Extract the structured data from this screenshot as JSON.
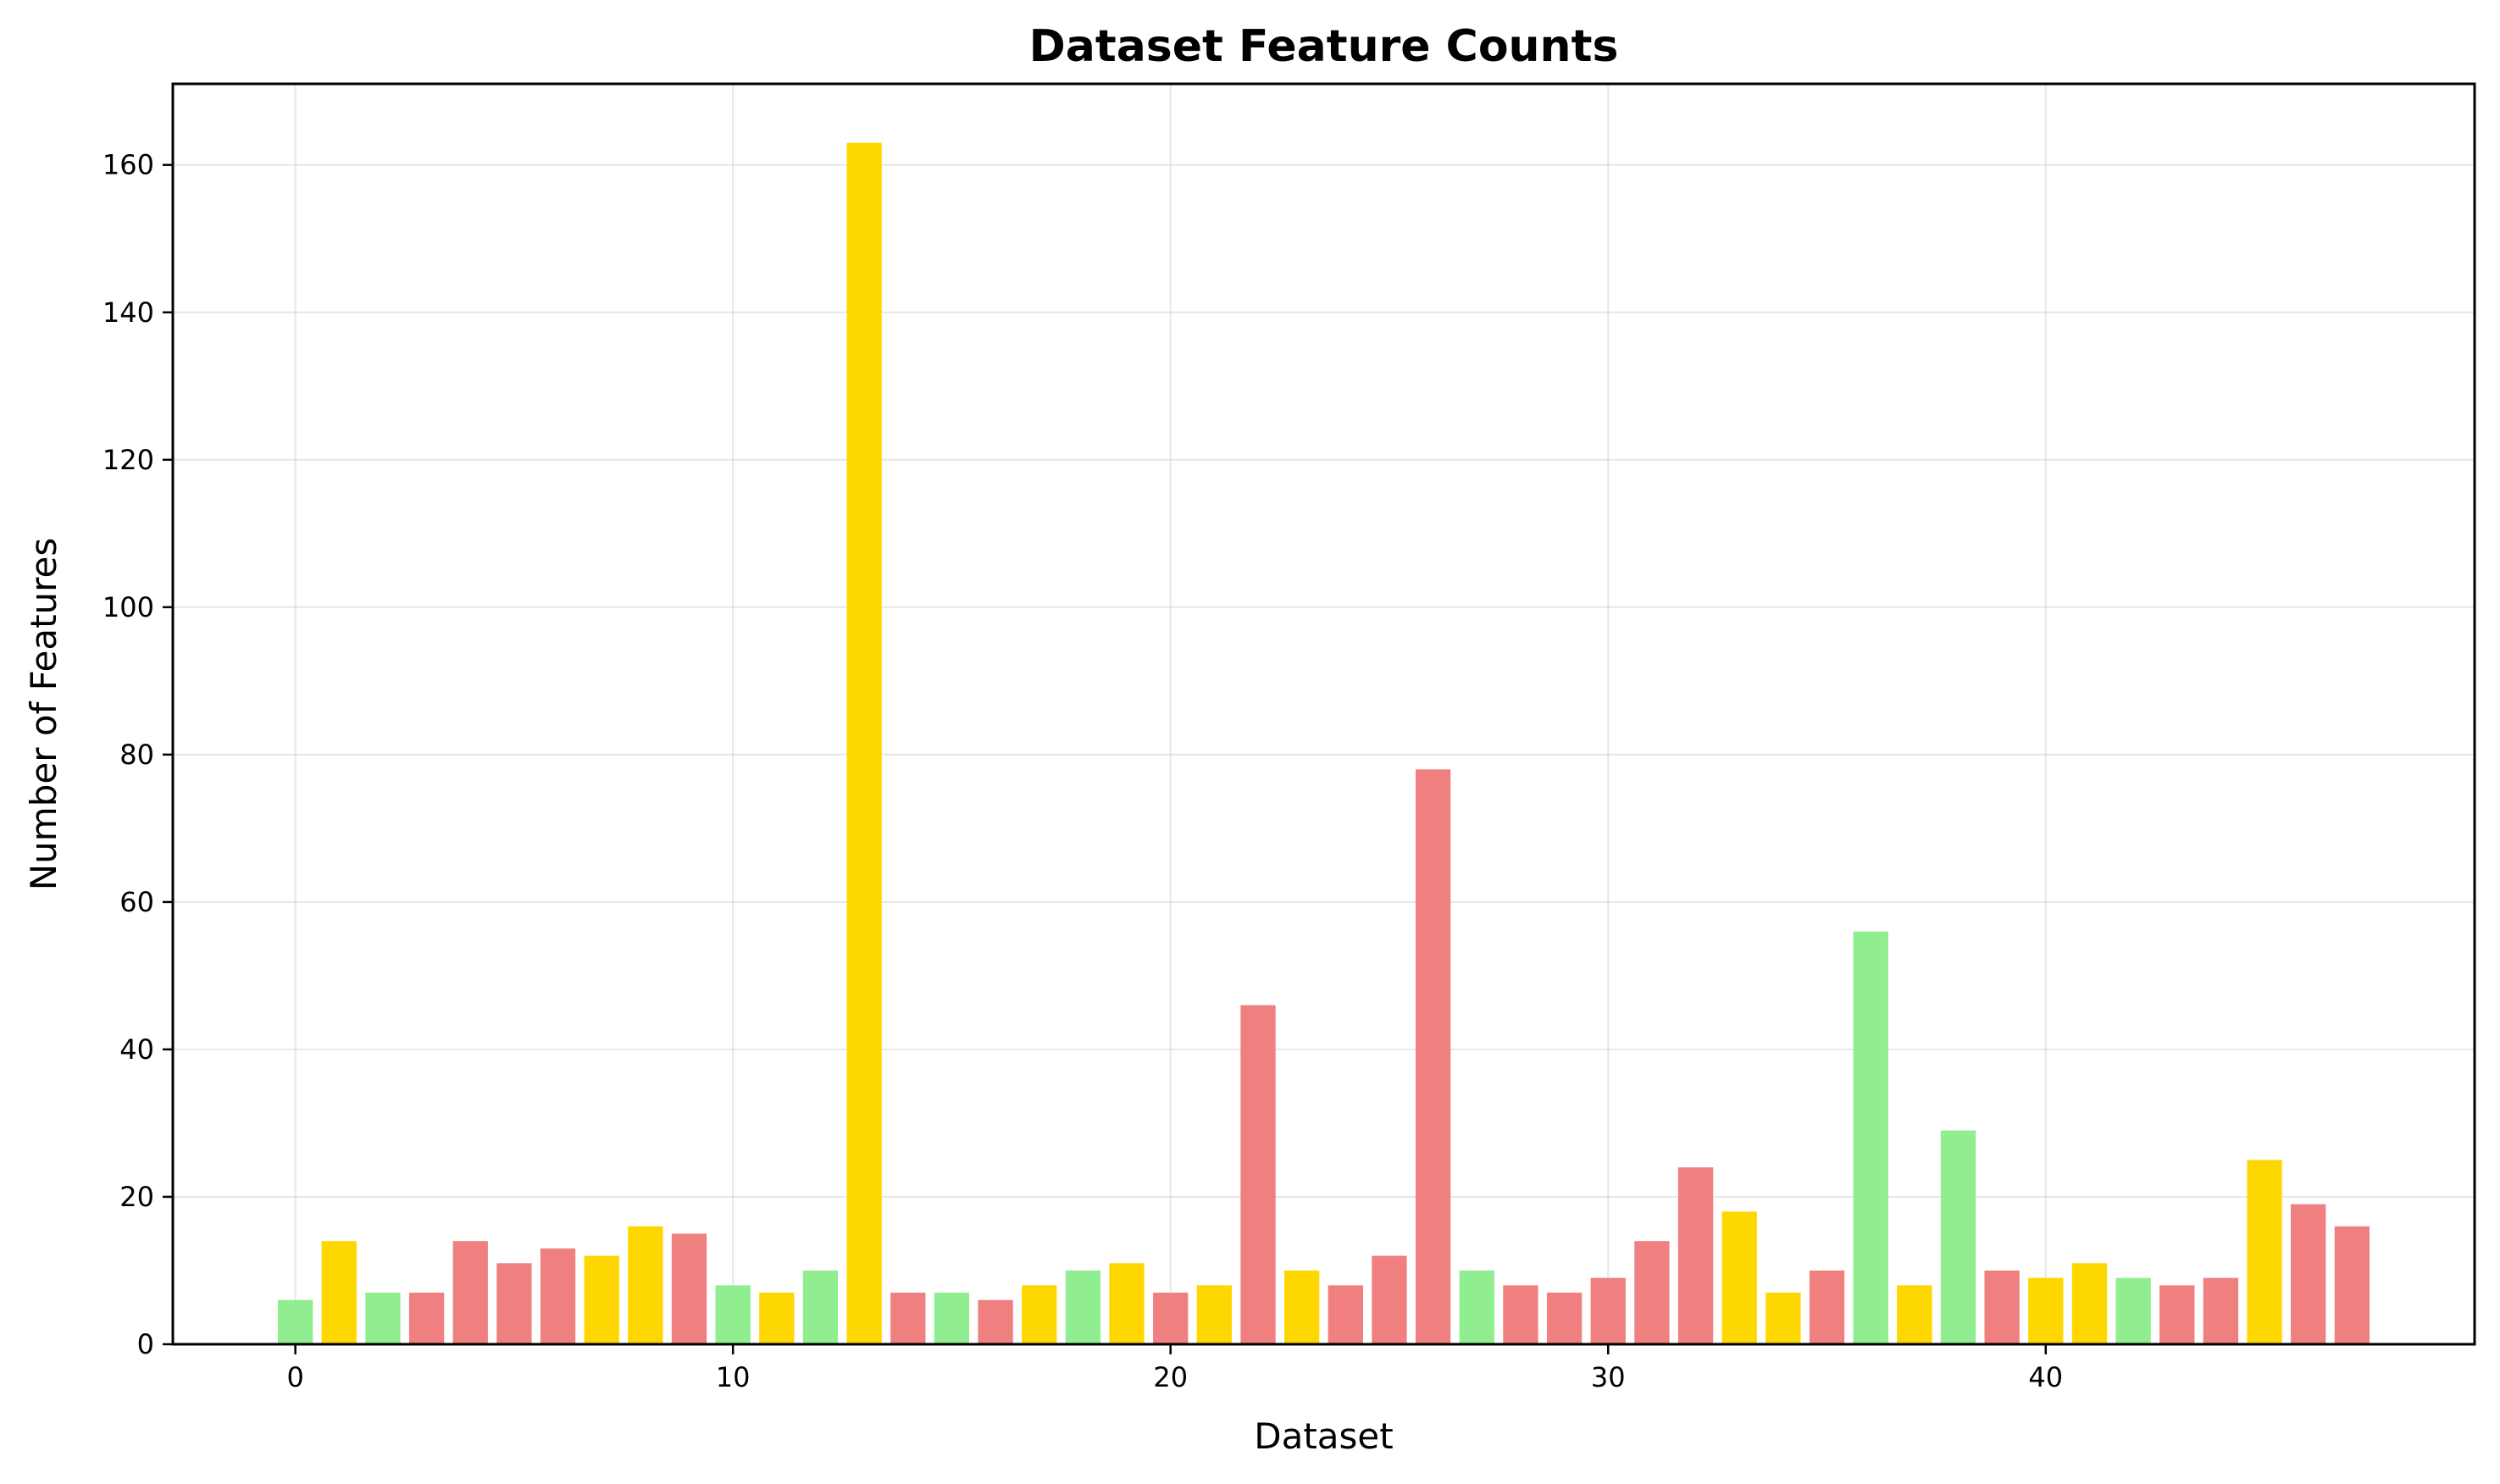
{
  "chart_data": {
    "type": "bar",
    "title": "Dataset Feature Counts",
    "xlabel": "Dataset",
    "ylabel": "Number of Features",
    "x": [
      0,
      1,
      2,
      3,
      4,
      5,
      6,
      7,
      8,
      9,
      10,
      11,
      12,
      13,
      14,
      15,
      16,
      17,
      18,
      19,
      20,
      21,
      22,
      23,
      24,
      25,
      26,
      27,
      28,
      29,
      30,
      31,
      32,
      33,
      34,
      35,
      36,
      37,
      38,
      39,
      40,
      41,
      42,
      43,
      44,
      45,
      46,
      47
    ],
    "values": [
      6,
      14,
      7,
      7,
      14,
      11,
      13,
      12,
      16,
      15,
      8,
      7,
      10,
      163,
      7,
      7,
      6,
      8,
      10,
      11,
      7,
      8,
      46,
      10,
      8,
      12,
      78,
      10,
      8,
      7,
      9,
      14,
      24,
      18,
      7,
      10,
      56,
      8,
      29,
      10,
      9,
      11,
      9,
      8,
      9,
      25,
      19,
      16
    ],
    "bar_colors": [
      "#90ee90",
      "#ffd700",
      "#90ee90",
      "#f08080",
      "#f08080",
      "#f08080",
      "#f08080",
      "#ffd700",
      "#ffd700",
      "#f08080",
      "#90ee90",
      "#ffd700",
      "#90ee90",
      "#ffd700",
      "#f08080",
      "#90ee90",
      "#f08080",
      "#ffd700",
      "#90ee90",
      "#ffd700",
      "#f08080",
      "#ffd700",
      "#f08080",
      "#ffd700",
      "#f08080",
      "#f08080",
      "#f08080",
      "#90ee90",
      "#f08080",
      "#f08080",
      "#f08080",
      "#f08080",
      "#f08080",
      "#ffd700",
      "#ffd700",
      "#f08080",
      "#90ee90",
      "#ffd700",
      "#90ee90",
      "#f08080",
      "#ffd700",
      "#ffd700",
      "#90ee90",
      "#f08080",
      "#f08080",
      "#ffd700",
      "#f08080",
      "#f08080"
    ],
    "xlim": [
      -2.8,
      49.8
    ],
    "ylim": [
      0,
      171
    ],
    "xticks": [
      0,
      10,
      20,
      30,
      40
    ],
    "yticks": [
      0,
      20,
      40,
      60,
      80,
      100,
      120,
      140,
      160
    ],
    "grid": true
  }
}
